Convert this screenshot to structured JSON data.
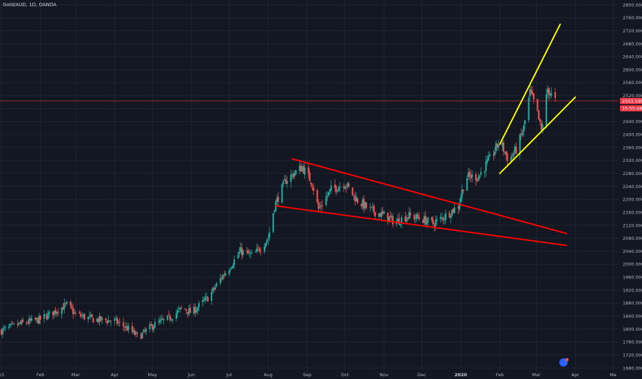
{
  "window": {
    "symbol_title": "Gold/AUD, 1D, OANDA"
  },
  "colors": {
    "background": "#131722",
    "grid": "#1f2430",
    "bull": "#26a69a",
    "bear": "#ef5350",
    "wedge_lines": "#ff0000",
    "channel_lines": "#ffff00",
    "price_line": "#f23645"
  },
  "chart_data": {
    "type": "candlestick",
    "ylim": [
      1680,
      2800
    ],
    "y_ticks": [
      1680,
      1720,
      1760,
      1800,
      1840,
      1880,
      1920,
      1960,
      2000,
      2040,
      2080,
      2120,
      2160,
      2200,
      2240,
      2280,
      2320,
      2360,
      2400,
      2440,
      2480,
      2520,
      2560,
      2600,
      2640,
      2680,
      2720,
      2760,
      2800
    ],
    "y_tick_labels": [
      "1680.000",
      "1720.000",
      "1760.000",
      "1800.000",
      "1840.000",
      "1880.000",
      "1920.000",
      "1960.000",
      "2000.000",
      "2040.000",
      "2080.000",
      "2120.000",
      "2160.000",
      "2200.000",
      "2240.000",
      "2280.000",
      "2320.000",
      "2360.000",
      "2400.000",
      "2440.000",
      "2480.000",
      "2520.000",
      "2560.000",
      "2600.000",
      "2640.000",
      "2680.000",
      "2720.000",
      "2760.000",
      "2800.000"
    ],
    "x_ticks": [
      {
        "label": "15",
        "date": "2019-01-01"
      },
      {
        "label": "Feb",
        "date": "2019-02-01"
      },
      {
        "label": "Mar",
        "date": "2019-03-01"
      },
      {
        "label": "Apr",
        "date": "2019-04-01"
      },
      {
        "label": "May",
        "date": "2019-05-01"
      },
      {
        "label": "Jun",
        "date": "2019-06-01"
      },
      {
        "label": "Jul",
        "date": "2019-07-01"
      },
      {
        "label": "Aug",
        "date": "2019-08-01"
      },
      {
        "label": "Sep",
        "date": "2019-09-01"
      },
      {
        "label": "Oct",
        "date": "2019-10-01"
      },
      {
        "label": "Nov",
        "date": "2019-11-01"
      },
      {
        "label": "Dec",
        "date": "2019-12-01"
      },
      {
        "label": "2020",
        "date": "2020-01-01",
        "bold": true
      },
      {
        "label": "Feb",
        "date": "2020-02-01"
      },
      {
        "label": "Mar",
        "date": "2020-03-01"
      },
      {
        "label": "Apr",
        "date": "2020-04-01"
      },
      {
        "label": "Ma",
        "date": "2020-05-01"
      }
    ],
    "x_range": [
      "2019-01-01",
      "2020-05-01"
    ],
    "grid": true,
    "last_price": 2503.599,
    "last_price_label": "2503.599",
    "countdown_label": "15:55:49",
    "countdown_price": 2481,
    "price_path": [
      [
        "2019-01-01",
        1795
      ],
      [
        "2019-01-15",
        1815
      ],
      [
        "2019-02-01",
        1830
      ],
      [
        "2019-02-15",
        1860
      ],
      [
        "2019-02-22",
        1875
      ],
      [
        "2019-03-01",
        1845
      ],
      [
        "2019-03-15",
        1830
      ],
      [
        "2019-04-01",
        1825
      ],
      [
        "2019-04-12",
        1800
      ],
      [
        "2019-04-20",
        1775
      ],
      [
        "2019-05-01",
        1810
      ],
      [
        "2019-05-15",
        1835
      ],
      [
        "2019-05-25",
        1865
      ],
      [
        "2019-06-01",
        1850
      ],
      [
        "2019-06-15",
        1900
      ],
      [
        "2019-06-25",
        1960
      ],
      [
        "2019-07-01",
        1990
      ],
      [
        "2019-07-10",
        2040
      ],
      [
        "2019-07-20",
        2025
      ],
      [
        "2019-08-01",
        2080
      ],
      [
        "2019-08-06",
        2180
      ],
      [
        "2019-08-15",
        2260
      ],
      [
        "2019-08-28",
        2300
      ],
      [
        "2019-09-05",
        2250
      ],
      [
        "2019-09-10",
        2170
      ],
      [
        "2019-09-20",
        2230
      ],
      [
        "2019-10-01",
        2250
      ],
      [
        "2019-10-10",
        2200
      ],
      [
        "2019-10-20",
        2170
      ],
      [
        "2019-11-01",
        2150
      ],
      [
        "2019-11-10",
        2130
      ],
      [
        "2019-11-20",
        2150
      ],
      [
        "2019-12-01",
        2140
      ],
      [
        "2019-12-10",
        2125
      ],
      [
        "2019-12-20",
        2150
      ],
      [
        "2019-12-30",
        2180
      ],
      [
        "2020-01-05",
        2270
      ],
      [
        "2020-01-15",
        2270
      ],
      [
        "2020-01-25",
        2330
      ],
      [
        "2020-02-01",
        2380
      ],
      [
        "2020-02-08",
        2320
      ],
      [
        "2020-02-15",
        2360
      ],
      [
        "2020-02-20",
        2420
      ],
      [
        "2020-02-25",
        2530
      ],
      [
        "2020-03-01",
        2480
      ],
      [
        "2020-03-05",
        2410
      ],
      [
        "2020-03-10",
        2540
      ],
      [
        "2020-03-16",
        2503
      ]
    ],
    "trendlines": [
      {
        "name": "wedge-upper",
        "color": "red",
        "from": [
          "2019-08-20",
          2325
        ],
        "to": [
          "2020-03-25",
          2095
        ]
      },
      {
        "name": "wedge-lower",
        "color": "red",
        "from": [
          "2019-08-07",
          2180
        ],
        "to": [
          "2020-03-25",
          2058
        ]
      },
      {
        "name": "channel-upper",
        "color": "yellow",
        "from": [
          "2020-02-01",
          2370
        ],
        "to": [
          "2020-03-20",
          2740
        ]
      },
      {
        "name": "channel-lower",
        "color": "yellow",
        "from": [
          "2020-02-01",
          2280
        ],
        "to": [
          "2020-04-01",
          2515
        ]
      }
    ]
  },
  "badge": {
    "icon": "tradingview-logo-icon"
  }
}
